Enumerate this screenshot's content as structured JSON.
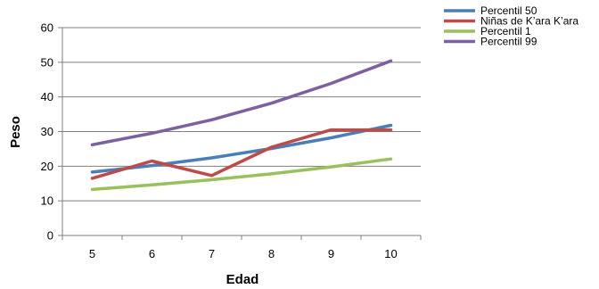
{
  "chart_data": {
    "type": "line",
    "x": [
      5,
      6,
      7,
      8,
      9,
      10
    ],
    "xlabel": "Edad",
    "ylabel": "Peso",
    "ylim": [
      0,
      60
    ],
    "yticks": [
      0,
      10,
      20,
      30,
      40,
      50,
      60
    ],
    "grid": true,
    "legend": "top-right",
    "series": [
      {
        "name": "Percentil 50",
        "color": "#4a7ebb",
        "values": [
          18.3,
          20.2,
          22.4,
          25.1,
          28.2,
          31.8
        ]
      },
      {
        "name": "Niñas de K’ara K’ara",
        "color": "#be4b48",
        "values": [
          16.5,
          21.5,
          17.3,
          25.5,
          30.5,
          30.5
        ]
      },
      {
        "name": "Percentil 1",
        "color": "#98c15c",
        "values": [
          13.3,
          14.6,
          16.1,
          17.8,
          19.8,
          22.1
        ]
      },
      {
        "name": "Percentil 99",
        "color": "#7d60a0",
        "values": [
          26.2,
          29.5,
          33.4,
          38.2,
          43.9,
          50.4
        ]
      }
    ]
  }
}
